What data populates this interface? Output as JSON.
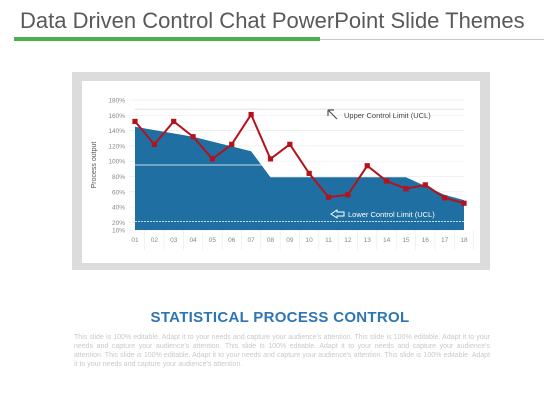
{
  "slide": {
    "title": "Data Driven Control Chat PowerPoint Slide Themes",
    "section_heading": "STATISTICAL PROCESS CONTROL",
    "body_text": "This slide is 100% editable. Adapt it to your needs and capture your audience's attention. This slide is 100% editable. Adapt it to your needs and capture your audience's attention. This slide is 100% editable. Adapt it to your needs and capture your audience's attention. This slide is 100% editable. Adapt it to your needs and capture your audience's attention. This slide is 100% editable. Adapt it to your needs and capture your audience's attention."
  },
  "colors": {
    "title_rule_accent": "#4caf50",
    "area_fill": "#1f6fa3",
    "line": "#b5121b",
    "heading": "#2e75b6"
  },
  "chart_data": {
    "type": "line",
    "title": "",
    "xlabel": "",
    "ylabel": "Process output",
    "categories": [
      "01",
      "02",
      "03",
      "04",
      "05",
      "06",
      "07",
      "08",
      "09",
      "10",
      "11",
      "12",
      "13",
      "14",
      "15",
      "16",
      "17",
      "18"
    ],
    "ylim": [
      10,
      180
    ],
    "yticks": [
      10,
      20,
      40,
      60,
      80,
      100,
      120,
      140,
      160,
      180
    ],
    "ytick_labels": [
      "10%",
      "20%",
      "40%",
      "60%",
      "80%",
      "100%",
      "120%",
      "140%",
      "160%",
      "180%"
    ],
    "grid": true,
    "series": [
      {
        "name": "",
        "type": "line",
        "values": [
          152,
          122,
          152,
          132,
          103,
          122,
          161,
          103,
          122,
          84,
          53,
          56,
          94,
          74,
          64,
          69,
          52,
          45
        ]
      },
      {
        "name": "",
        "type": "area",
        "points": [
          [
            1,
            145
          ],
          [
            4,
            132
          ],
          [
            7,
            113
          ],
          [
            8,
            79
          ],
          [
            15,
            79
          ],
          [
            17,
            56
          ],
          [
            18,
            49
          ]
        ]
      }
    ],
    "reference_lines": [
      {
        "value": 95,
        "label": ""
      },
      {
        "value": 21,
        "label": ""
      }
    ],
    "annotations": [
      {
        "text": "Upper Control Limit (UCL)",
        "icon": "arrow-up-left-icon"
      },
      {
        "text": "Lower Control Limit (UCL)",
        "icon": "arrow-left-icon"
      }
    ]
  }
}
